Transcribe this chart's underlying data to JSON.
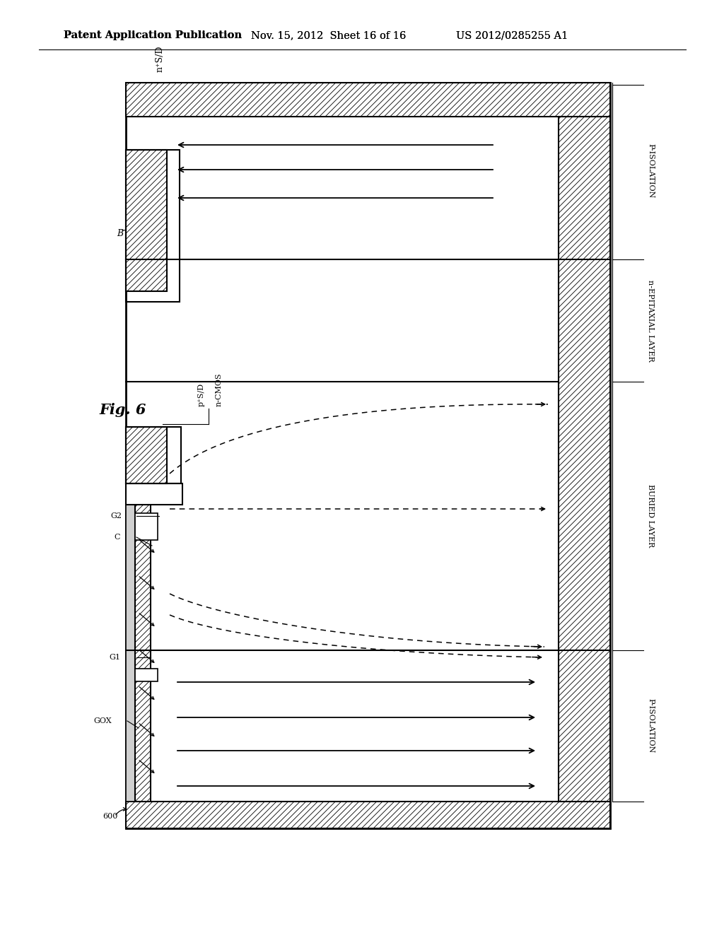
{
  "title_left": "Patent Application Publication",
  "title_mid": "Nov. 15, 2012  Sheet 16 of 16",
  "title_right": "US 2012/0285255 A1",
  "bg_color": "#ffffff",
  "header_fontsize": 10.5,
  "label_fontsize": 9,
  "small_label_fontsize": 8
}
